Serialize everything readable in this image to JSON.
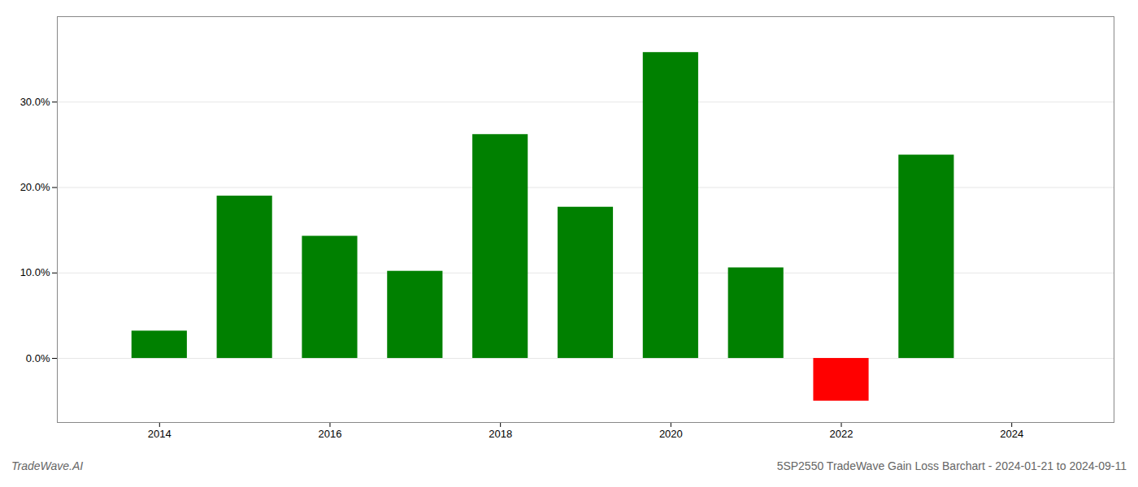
{
  "chart_data": {
    "type": "bar",
    "x": [
      2014,
      2015,
      2016,
      2017,
      2018,
      2019,
      2020,
      2021,
      2022,
      2023
    ],
    "values": [
      3.2,
      19.0,
      14.3,
      10.2,
      26.2,
      17.7,
      35.8,
      10.6,
      -5.0,
      23.8
    ],
    "colors": [
      "#008000",
      "#008000",
      "#008000",
      "#008000",
      "#008000",
      "#008000",
      "#008000",
      "#008000",
      "#ff0000",
      "#008000"
    ],
    "xlim": [
      2012.8,
      2025.2
    ],
    "xticks": [
      2014,
      2016,
      2018,
      2020,
      2022,
      2024
    ],
    "ylim": [
      -7.5,
      40
    ],
    "yticks": [
      {
        "value": 0.0,
        "label": "0.0%"
      },
      {
        "value": 10.0,
        "label": "10.0%"
      },
      {
        "value": 20.0,
        "label": "20.0%"
      },
      {
        "value": 30.0,
        "label": "30.0%"
      }
    ],
    "grid": true,
    "annotations": [
      "TradeWave.AI",
      "5SP2550 TradeWave Gain Loss Barchart - 2024-01-21 to 2024-09-11"
    ]
  }
}
